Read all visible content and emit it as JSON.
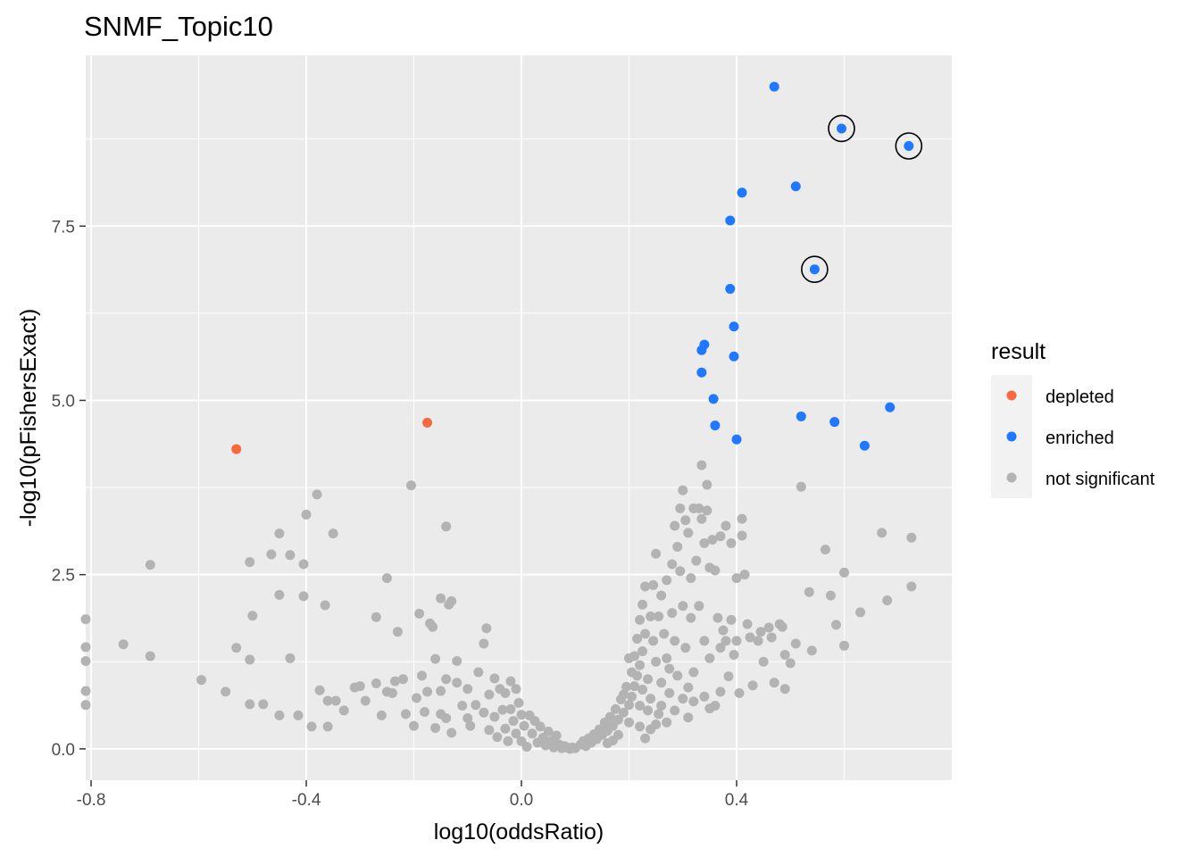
{
  "chart_data": {
    "type": "scatter",
    "title": "SNMF_Topic10",
    "xlabel": "log10(oddsRatio)",
    "ylabel": "-log10(pFishersExact)",
    "xlim": [
      -0.81,
      0.8
    ],
    "ylim": [
      -0.45,
      9.95
    ],
    "x_ticks": [
      -0.8,
      -0.4,
      0.0,
      0.4
    ],
    "x_tick_labels": [
      "-0.8",
      "-0.4",
      "0.0",
      "0.4"
    ],
    "y_ticks": [
      0.0,
      2.5,
      5.0,
      7.5
    ],
    "y_tick_labels": [
      "0.0",
      "2.5",
      "5.0",
      "7.5"
    ],
    "grid": true,
    "legend": {
      "title": "result",
      "position": "right",
      "entries": [
        {
          "label": "depleted",
          "color": "#F8693E"
        },
        {
          "label": "enriched",
          "color": "#1F78FF"
        },
        {
          "label": "not significant",
          "color": "#B3B3B3"
        }
      ]
    },
    "series": [
      {
        "name": "depleted",
        "color": "#F8693E",
        "points": [
          [
            -0.53,
            4.3
          ],
          [
            -0.175,
            4.68
          ]
        ]
      },
      {
        "name": "enriched",
        "color": "#1F78FF",
        "points": [
          [
            0.47,
            9.5
          ],
          [
            0.595,
            8.9
          ],
          [
            0.72,
            8.65
          ],
          [
            0.51,
            8.07
          ],
          [
            0.41,
            7.98
          ],
          [
            0.388,
            7.58
          ],
          [
            0.545,
            6.88
          ],
          [
            0.388,
            6.6
          ],
          [
            0.395,
            6.06
          ],
          [
            0.34,
            5.8
          ],
          [
            0.335,
            5.72
          ],
          [
            0.395,
            5.63
          ],
          [
            0.335,
            5.4
          ],
          [
            0.357,
            5.02
          ],
          [
            0.685,
            4.9
          ],
          [
            0.52,
            4.77
          ],
          [
            0.582,
            4.69
          ],
          [
            0.36,
            4.64
          ],
          [
            0.4,
            4.44
          ],
          [
            0.638,
            4.35
          ]
        ]
      },
      {
        "name": "not significant",
        "color": "#B3B3B3",
        "points": [
          [
            -0.81,
            1.86
          ],
          [
            -0.81,
            1.46
          ],
          [
            -0.81,
            1.26
          ],
          [
            -0.81,
            0.83
          ],
          [
            -0.81,
            0.63
          ],
          [
            -0.74,
            1.5
          ],
          [
            -0.69,
            2.64
          ],
          [
            -0.69,
            1.33
          ],
          [
            -0.595,
            0.99
          ],
          [
            -0.55,
            0.82
          ],
          [
            -0.53,
            1.45
          ],
          [
            -0.505,
            2.68
          ],
          [
            -0.505,
            1.28
          ],
          [
            -0.505,
            0.64
          ],
          [
            -0.5,
            1.91
          ],
          [
            -0.48,
            0.64
          ],
          [
            -0.465,
            2.79
          ],
          [
            -0.45,
            3.09
          ],
          [
            -0.45,
            2.21
          ],
          [
            -0.45,
            0.48
          ],
          [
            -0.43,
            2.78
          ],
          [
            -0.43,
            1.3
          ],
          [
            -0.415,
            0.48
          ],
          [
            -0.405,
            2.65
          ],
          [
            -0.405,
            2.19
          ],
          [
            -0.4,
            3.36
          ],
          [
            -0.39,
            0.32
          ],
          [
            -0.38,
            3.65
          ],
          [
            -0.375,
            0.84
          ],
          [
            -0.365,
            2.06
          ],
          [
            -0.36,
            0.69
          ],
          [
            -0.36,
            0.32
          ],
          [
            -0.35,
            3.09
          ],
          [
            -0.345,
            0.69
          ],
          [
            -0.33,
            0.55
          ],
          [
            -0.31,
            0.88
          ],
          [
            -0.3,
            0.9
          ],
          [
            -0.29,
            0.69
          ],
          [
            -0.27,
            1.89
          ],
          [
            -0.27,
            0.94
          ],
          [
            -0.26,
            0.48
          ],
          [
            -0.25,
            2.45
          ],
          [
            -0.25,
            0.82
          ],
          [
            -0.24,
            0.8
          ],
          [
            -0.235,
            0.97
          ],
          [
            -0.23,
            1.68
          ],
          [
            -0.22,
            1.0
          ],
          [
            -0.215,
            0.5
          ],
          [
            -0.205,
            3.78
          ],
          [
            -0.2,
            0.33
          ],
          [
            -0.195,
            0.73
          ],
          [
            -0.19,
            1.94
          ],
          [
            -0.185,
            1.05
          ],
          [
            -0.18,
            0.53
          ],
          [
            -0.175,
            0.82
          ],
          [
            -0.17,
            1.8
          ],
          [
            -0.165,
            1.75
          ],
          [
            -0.16,
            1.29
          ],
          [
            -0.15,
            2.16
          ],
          [
            -0.14,
            3.19
          ],
          [
            -0.14,
            1.0
          ],
          [
            -0.135,
            2.07
          ],
          [
            -0.13,
            2.12
          ],
          [
            -0.12,
            1.26
          ],
          [
            -0.12,
            0.95
          ],
          [
            -0.15,
            0.83
          ],
          [
            -0.15,
            0.5
          ],
          [
            -0.16,
            0.3
          ],
          [
            -0.14,
            0.44
          ],
          [
            -0.13,
            0.23
          ],
          [
            -0.11,
            0.62
          ],
          [
            -0.1,
            0.86
          ],
          [
            -0.1,
            0.44
          ],
          [
            -0.095,
            0.33
          ],
          [
            -0.085,
            0.63
          ],
          [
            -0.08,
            1.1
          ],
          [
            -0.07,
            1.51
          ],
          [
            -0.07,
            0.52
          ],
          [
            -0.065,
            1.73
          ],
          [
            -0.06,
            0.78
          ],
          [
            -0.06,
            0.27
          ],
          [
            -0.05,
            1.01
          ],
          [
            -0.05,
            0.46
          ],
          [
            -0.045,
            0.17
          ],
          [
            -0.04,
            0.86
          ],
          [
            -0.035,
            0.56
          ],
          [
            -0.03,
            0.8
          ],
          [
            -0.03,
            0.29
          ],
          [
            -0.025,
            0.11
          ],
          [
            -0.02,
            0.97
          ],
          [
            -0.02,
            0.57
          ],
          [
            -0.015,
            0.4
          ],
          [
            -0.01,
            0.86
          ],
          [
            -0.01,
            0.22
          ],
          [
            -0.005,
            0.66
          ],
          [
            0.0,
            0.49
          ],
          [
            0.0,
            0.11
          ],
          [
            0.005,
            0.33
          ],
          [
            0.01,
            0.03
          ],
          [
            0.015,
            0.48
          ],
          [
            0.02,
            0.22
          ],
          [
            0.025,
            0.4
          ],
          [
            0.03,
            0.09
          ],
          [
            0.035,
            0.32
          ],
          [
            0.04,
            0.16
          ],
          [
            0.045,
            0.05
          ],
          [
            0.05,
            0.25
          ],
          [
            0.055,
            0.11
          ],
          [
            0.06,
            0.02
          ],
          [
            0.065,
            0.19
          ],
          [
            0.07,
            0.06
          ],
          [
            0.075,
            0.01
          ],
          [
            0.08,
            0.04
          ],
          [
            0.085,
            0.02
          ],
          [
            0.09,
            0.0
          ],
          [
            0.095,
            0.02
          ],
          [
            0.1,
            0.01
          ],
          [
            0.11,
            0.06
          ],
          [
            0.115,
            0.11
          ],
          [
            0.12,
            0.04
          ],
          [
            0.125,
            0.15
          ],
          [
            0.13,
            0.09
          ],
          [
            0.135,
            0.21
          ],
          [
            0.14,
            0.14
          ],
          [
            0.145,
            0.28
          ],
          [
            0.15,
            0.2
          ],
          [
            0.155,
            0.38
          ],
          [
            0.16,
            0.26
          ],
          [
            0.165,
            0.46
          ],
          [
            0.17,
            0.33
          ],
          [
            0.175,
            0.57
          ],
          [
            0.18,
            0.42
          ],
          [
            0.185,
            0.71
          ],
          [
            0.19,
            0.52
          ],
          [
            0.195,
            0.89
          ],
          [
            0.2,
            0.63
          ],
          [
            0.205,
            1.1
          ],
          [
            0.205,
            0.75
          ],
          [
            0.21,
            1.33
          ],
          [
            0.21,
            0.9
          ],
          [
            0.215,
            1.58
          ],
          [
            0.215,
            1.05
          ],
          [
            0.22,
            1.85
          ],
          [
            0.22,
            1.2
          ],
          [
            0.225,
            2.07
          ],
          [
            0.225,
            1.4
          ],
          [
            0.23,
            2.33
          ],
          [
            0.23,
            1.65
          ],
          [
            0.235,
            1.0
          ],
          [
            0.24,
            1.9
          ],
          [
            0.24,
            0.72
          ],
          [
            0.245,
            2.35
          ],
          [
            0.245,
            1.55
          ],
          [
            0.25,
            2.8
          ],
          [
            0.25,
            1.25
          ],
          [
            0.255,
            1.9
          ],
          [
            0.255,
            0.5
          ],
          [
            0.26,
            2.2
          ],
          [
            0.26,
            0.95
          ],
          [
            0.265,
            1.65
          ],
          [
            0.27,
            2.42
          ],
          [
            0.27,
            1.3
          ],
          [
            0.275,
            0.8
          ],
          [
            0.28,
            2.65
          ],
          [
            0.28,
            1.95
          ],
          [
            0.285,
            3.2
          ],
          [
            0.285,
            1.55
          ],
          [
            0.29,
            2.9
          ],
          [
            0.29,
            1.05
          ],
          [
            0.295,
            3.45
          ],
          [
            0.295,
            2.55
          ],
          [
            0.3,
            3.71
          ],
          [
            0.3,
            2.05
          ],
          [
            0.305,
            3.28
          ],
          [
            0.305,
            1.45
          ],
          [
            0.31,
            3.1
          ],
          [
            0.31,
            0.88
          ],
          [
            0.315,
            2.45
          ],
          [
            0.315,
            1.88
          ],
          [
            0.32,
            3.45
          ],
          [
            0.32,
            1.1
          ],
          [
            0.325,
            2.7
          ],
          [
            0.33,
            3.45
          ],
          [
            0.33,
            2.05
          ],
          [
            0.335,
            4.07
          ],
          [
            0.335,
            3.3
          ],
          [
            0.34,
            2.95
          ],
          [
            0.34,
            1.55
          ],
          [
            0.345,
            3.42
          ],
          [
            0.345,
            3.79
          ],
          [
            0.35,
            2.6
          ],
          [
            0.35,
            1.3
          ],
          [
            0.355,
            3.0
          ],
          [
            0.36,
            2.56
          ],
          [
            0.365,
            1.88
          ],
          [
            0.37,
            3.05
          ],
          [
            0.37,
            1.45
          ],
          [
            0.375,
            1.7
          ],
          [
            0.38,
            3.2
          ],
          [
            0.38,
            1.55
          ],
          [
            0.385,
            1.04
          ],
          [
            0.39,
            2.95
          ],
          [
            0.39,
            1.85
          ],
          [
            0.395,
            1.35
          ],
          [
            0.4,
            2.45
          ],
          [
            0.4,
            1.55
          ],
          [
            0.405,
            0.8
          ],
          [
            0.41,
            3.3
          ],
          [
            0.41,
            3.06
          ],
          [
            0.415,
            2.5
          ],
          [
            0.42,
            1.79
          ],
          [
            0.425,
            1.6
          ],
          [
            0.43,
            0.91
          ],
          [
            0.44,
            1.55
          ],
          [
            0.445,
            1.68
          ],
          [
            0.45,
            1.25
          ],
          [
            0.46,
            1.74
          ],
          [
            0.465,
            1.6
          ],
          [
            0.47,
            0.95
          ],
          [
            0.48,
            1.79
          ],
          [
            0.485,
            1.75
          ],
          [
            0.49,
            1.35
          ],
          [
            0.49,
            0.86
          ],
          [
            0.5,
            1.23
          ],
          [
            0.51,
            1.51
          ],
          [
            0.52,
            3.76
          ],
          [
            0.535,
            2.25
          ],
          [
            0.54,
            1.41
          ],
          [
            0.565,
            2.86
          ],
          [
            0.575,
            2.2
          ],
          [
            0.585,
            1.78
          ],
          [
            0.6,
            2.53
          ],
          [
            0.6,
            1.48
          ],
          [
            0.63,
            1.96
          ],
          [
            0.67,
            3.1
          ],
          [
            0.68,
            2.13
          ],
          [
            0.725,
            3.03
          ],
          [
            0.725,
            2.33
          ],
          [
            0.22,
            0.62
          ],
          [
            0.225,
            0.85
          ],
          [
            0.19,
            0.78
          ],
          [
            0.2,
            0.38
          ],
          [
            0.2,
            1.3
          ],
          [
            0.235,
            0.55
          ],
          [
            0.25,
            0.35
          ],
          [
            0.26,
            0.62
          ],
          [
            0.27,
            0.38
          ],
          [
            0.275,
            1.15
          ],
          [
            0.285,
            0.55
          ],
          [
            0.3,
            0.72
          ],
          [
            0.31,
            0.45
          ],
          [
            0.32,
            0.68
          ],
          [
            0.34,
            0.75
          ],
          [
            0.35,
            0.58
          ],
          [
            0.36,
            0.62
          ],
          [
            0.37,
            0.82
          ],
          [
            0.24,
            0.28
          ],
          [
            0.23,
            0.15
          ],
          [
            0.22,
            0.32
          ],
          [
            0.18,
            0.2
          ],
          [
            0.17,
            0.12
          ],
          [
            0.16,
            0.08
          ]
        ]
      }
    ],
    "highlighted_points": [
      [
        0.595,
        8.9
      ],
      [
        0.72,
        8.65
      ],
      [
        0.545,
        6.88
      ]
    ]
  }
}
